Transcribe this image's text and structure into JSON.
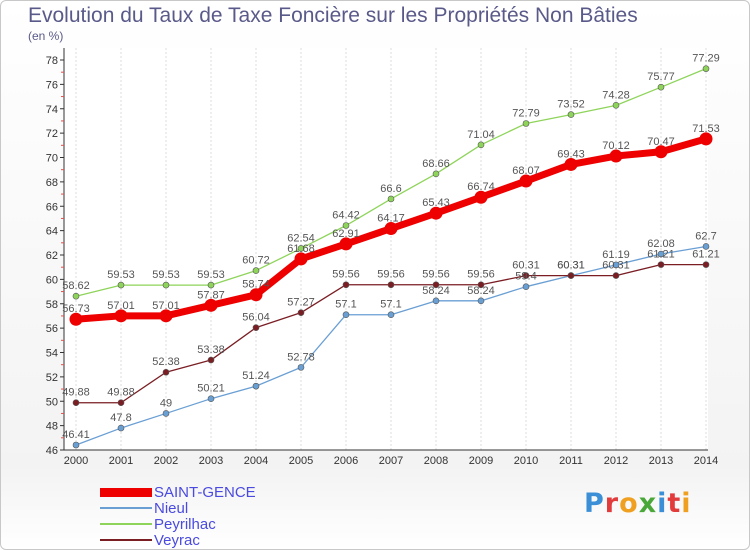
{
  "title": "Evolution du Taux de Taxe Foncière sur les Propriétés Non Bâties",
  "subtitle": "(en %)",
  "logo": {
    "letters": [
      "P",
      "r",
      "o",
      "x",
      "i",
      "t",
      "i"
    ],
    "colors": [
      "#3a8fd6",
      "#e23b3b",
      "#f0a020",
      "#4aa83a",
      "#3a8fd6",
      "#e23b3b",
      "#f0a020"
    ]
  },
  "chart_data": {
    "type": "line",
    "x": [
      "2000",
      "2001",
      "2002",
      "2003",
      "2004",
      "2005",
      "2006",
      "2007",
      "2008",
      "2009",
      "2010",
      "2011",
      "2012",
      "2013",
      "2014"
    ],
    "ylim": [
      46,
      78
    ],
    "yticks": [
      "46",
      "48",
      "50",
      "52",
      "54",
      "56",
      "58",
      "60",
      "62",
      "64",
      "66",
      "68",
      "70",
      "72",
      "74",
      "76",
      "78"
    ],
    "grid": "vertical",
    "legend_position": "bottom-left",
    "series": [
      {
        "name": "SAINT-GENCE",
        "color": "#ee0000",
        "values": [
          56.73,
          57.01,
          57.01,
          57.87,
          58.74,
          61.68,
          62.91,
          64.17,
          65.43,
          66.74,
          68.07,
          69.43,
          70.12,
          70.47,
          71.53
        ],
        "labels": [
          "56.73",
          "57.01",
          "57.01",
          "57.87",
          "58.74",
          "61.68",
          "62.91",
          "64.17",
          "65.43",
          "66.74",
          "68.07",
          "69.43",
          "70.12",
          "70.47",
          "71.53"
        ]
      },
      {
        "name": "Nieul",
        "color": "#6a9fd4",
        "values": [
          46.41,
          47.8,
          49,
          50.21,
          51.24,
          52.78,
          57.1,
          57.1,
          58.24,
          58.24,
          59.4,
          60.31,
          61.19,
          62.08,
          62.7
        ],
        "labels": [
          "46.41",
          "47.8",
          "49",
          "50.21",
          "51.24",
          "52.78",
          "57.1",
          "57.1",
          "58.24",
          "58.24",
          "59.4",
          "60.31",
          "61.19",
          "62.08",
          "62.7"
        ]
      },
      {
        "name": "Peyrilhac",
        "color": "#8ed45a",
        "values": [
          58.62,
          59.53,
          59.53,
          59.53,
          60.72,
          62.54,
          64.42,
          66.6,
          68.66,
          71.04,
          72.79,
          73.52,
          74.28,
          75.77,
          77.29
        ],
        "labels": [
          "58.62",
          "59.53",
          "59.53",
          "59.53",
          "60.72",
          "62.54",
          "64.42",
          "66.6",
          "68.66",
          "71.04",
          "72.79",
          "73.52",
          "74.28",
          "75.77",
          "77.29"
        ]
      },
      {
        "name": "Veyrac",
        "color": "#7a1e24",
        "values": [
          49.88,
          49.88,
          52.38,
          53.38,
          56.04,
          57.27,
          59.56,
          59.56,
          59.56,
          59.56,
          60.31,
          60.31,
          60.31,
          61.21,
          61.21
        ],
        "labels": [
          "49.88",
          "49.88",
          "52.38",
          "53.38",
          "56.04",
          "57.27",
          "59.56",
          "59.56",
          "59.56",
          "59.56",
          "60.31",
          "60.31",
          "60.31",
          "61.21",
          "61.21"
        ]
      }
    ]
  }
}
